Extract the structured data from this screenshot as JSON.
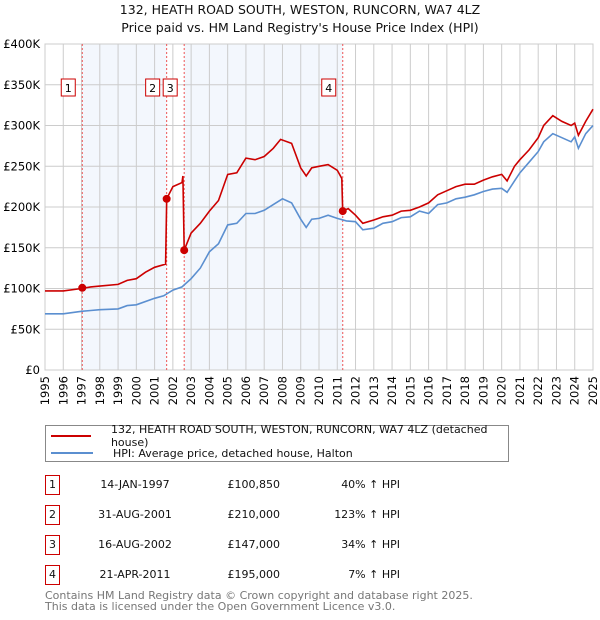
{
  "chart_data": {
    "type": "line",
    "title": "132, HEATH ROAD SOUTH, WESTON, RUNCORN, WA7 4LZ",
    "subtitle": "Price paid vs. HM Land Registry's House Price Index (HPI)",
    "xlim": [
      1995,
      2025
    ],
    "ylim": [
      0,
      400000
    ],
    "x_ticks": [
      "1995",
      "1996",
      "1997",
      "1998",
      "1999",
      "2000",
      "2001",
      "2002",
      "2003",
      "2004",
      "2005",
      "2006",
      "2007",
      "2008",
      "2009",
      "2010",
      "2011",
      "2012",
      "2013",
      "2014",
      "2015",
      "2016",
      "2017",
      "2018",
      "2019",
      "2020",
      "2021",
      "2022",
      "2023",
      "2024",
      "2025"
    ],
    "y_ticks": [
      {
        "v": 0,
        "label": "£0"
      },
      {
        "v": 50000,
        "label": "£50K"
      },
      {
        "v": 100000,
        "label": "£100K"
      },
      {
        "v": 150000,
        "label": "£150K"
      },
      {
        "v": 200000,
        "label": "£200K"
      },
      {
        "v": 250000,
        "label": "£250K"
      },
      {
        "v": 300000,
        "label": "£300K"
      },
      {
        "v": 350000,
        "label": "£350K"
      },
      {
        "v": 400000,
        "label": "£400K"
      }
    ],
    "grid": true,
    "series": [
      {
        "name": "132, HEATH ROAD SOUTH, WESTON, RUNCORN, WA7 4LZ (detached house)",
        "color": "#cc0000",
        "x": [
          1995,
          1996,
          1997,
          1997.5,
          1998,
          1999,
          1999.5,
          2000,
          2000.5,
          2001,
          2001.6,
          2001.66,
          2002,
          2002.5,
          2002.55,
          2002.62,
          2003,
          2003.5,
          2004,
          2004.5,
          2005,
          2005.5,
          2006,
          2006.5,
          2007,
          2007.5,
          2007.9,
          2008.5,
          2009,
          2009.3,
          2009.6,
          2010,
          2010.5,
          2011,
          2011.25,
          2011.3,
          2011.6,
          2012,
          2012.4,
          2013,
          2013.5,
          2014,
          2014.5,
          2015,
          2015.5,
          2016,
          2016.5,
          2017,
          2017.5,
          2018,
          2018.5,
          2019,
          2019.5,
          2020,
          2020.3,
          2020.7,
          2021,
          2021.5,
          2022,
          2022.3,
          2022.8,
          2023.3,
          2023.8,
          2024,
          2024.2,
          2024.6,
          2025
        ],
        "y": [
          97,
          97,
          100,
          102,
          103,
          105,
          110,
          112,
          120,
          126,
          130,
          210,
          225,
          230,
          238,
          147,
          168,
          180,
          195,
          208,
          240,
          242,
          260,
          258,
          262,
          272,
          283,
          278,
          248,
          238,
          248,
          250,
          252,
          245,
          235,
          195,
          198,
          190,
          180,
          184,
          188,
          190,
          195,
          196,
          200,
          205,
          215,
          220,
          225,
          228,
          228,
          233,
          237,
          240,
          232,
          250,
          258,
          270,
          285,
          300,
          312,
          305,
          300,
          303,
          288,
          305,
          320
        ]
      },
      {
        "name": "HPI: Average price, detached house, Halton",
        "color": "#5b8fd0",
        "x": [
          1995,
          1996,
          1997,
          1997.5,
          1998,
          1999,
          1999.5,
          2000,
          2001,
          2001.5,
          2002,
          2002.5,
          2003,
          2003.5,
          2004,
          2004.5,
          2005,
          2005.5,
          2006,
          2006.5,
          2007,
          2007.5,
          2008,
          2008.5,
          2009,
          2009.3,
          2009.6,
          2010,
          2010.5,
          2011,
          2011.5,
          2012,
          2012.4,
          2013,
          2013.5,
          2014,
          2014.5,
          2015,
          2015.5,
          2016,
          2016.5,
          2017,
          2017.5,
          2018,
          2018.5,
          2019,
          2019.5,
          2020,
          2020.3,
          2020.7,
          2021,
          2021.5,
          2022,
          2022.3,
          2022.8,
          2023.3,
          2023.8,
          2024,
          2024.2,
          2024.6,
          2025
        ],
        "y": [
          69,
          69,
          72,
          73,
          74,
          75,
          79,
          80,
          88,
          91,
          98,
          102,
          112,
          125,
          145,
          155,
          178,
          180,
          192,
          192,
          196,
          203,
          210,
          205,
          185,
          175,
          185,
          186,
          190,
          186,
          183,
          182,
          172,
          174,
          180,
          182,
          187,
          188,
          195,
          192,
          203,
          205,
          210,
          212,
          215,
          219,
          222,
          223,
          218,
          232,
          242,
          255,
          268,
          280,
          290,
          285,
          280,
          286,
          272,
          290,
          300
        ]
      }
    ],
    "y_units": "thousands GBP",
    "sales": [
      {
        "n": "1",
        "x": 1997.04,
        "y": 100850
      },
      {
        "n": "2",
        "x": 2001.66,
        "y": 210000
      },
      {
        "n": "3",
        "x": 2002.62,
        "y": 147000
      },
      {
        "n": "4",
        "x": 2011.3,
        "y": 195000
      }
    ],
    "shaded_ranges": [
      [
        1997.04,
        2001.66
      ],
      [
        2002.62,
        2011.3
      ]
    ],
    "legend_placement": "below"
  },
  "title_line1": "132, HEATH ROAD SOUTH, WESTON, RUNCORN, WA7 4LZ",
  "title_line2": "Price paid vs. HM Land Registry's House Price Index (HPI)",
  "legend": {
    "item1": "132, HEATH ROAD SOUTH, WESTON, RUNCORN, WA7 4LZ (detached house)",
    "item2": "HPI: Average price, detached house, Halton"
  },
  "transactions": [
    {
      "n": "1",
      "date": "14-JAN-1997",
      "price": "£100,850",
      "hpi": "40% ↑ HPI"
    },
    {
      "n": "2",
      "date": "31-AUG-2001",
      "price": "£210,000",
      "hpi": "123% ↑ HPI"
    },
    {
      "n": "3",
      "date": "16-AUG-2002",
      "price": "£147,000",
      "hpi": "34% ↑ HPI"
    },
    {
      "n": "4",
      "date": "21-APR-2011",
      "price": "£195,000",
      "hpi": "7% ↑ HPI"
    }
  ],
  "footer": {
    "line1": "Contains HM Land Registry data © Crown copyright and database right 2025.",
    "line2": "This data is licensed under the Open Government Licence v3.0."
  }
}
